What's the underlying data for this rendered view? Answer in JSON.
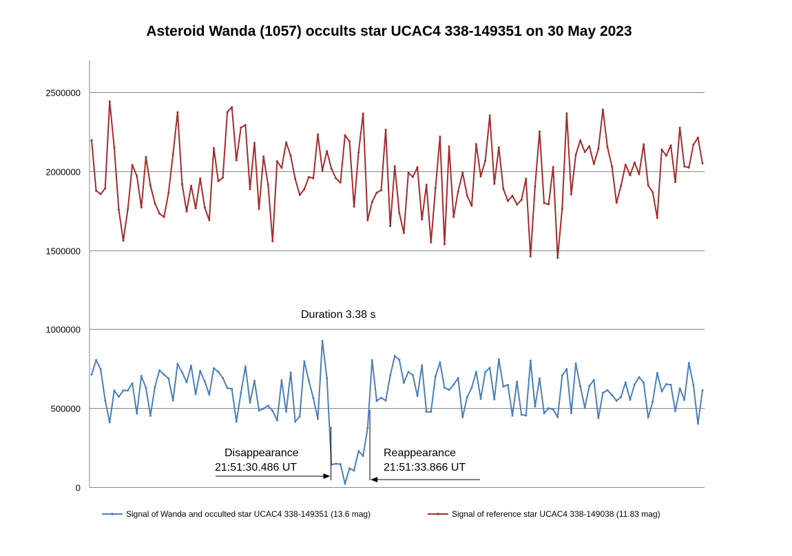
{
  "chart_data": {
    "type": "line",
    "title": "Asteroid Wanda (1057) occults star UCAC4 338-149351 on 30 May 2023",
    "xlabel": "",
    "ylabel": "",
    "ylim": [
      0,
      2700000
    ],
    "yticks": [
      0,
      500000,
      1000000,
      1500000,
      2000000,
      2500000
    ],
    "ytick_labels": [
      "0",
      "500000",
      "1000000",
      "1500000",
      "2000000",
      "2500000"
    ],
    "grid": "horizontal",
    "legend_position": "bottom",
    "series": [
      {
        "name": "Signal of Wanda and occulted star UCAC4 338-149351 (13.6 mag)",
        "color": "#4a7ebb",
        "values": [
          713000,
          805000,
          747000,
          549000,
          410000,
          612000,
          572000,
          612000,
          612000,
          658000,
          466000,
          704000,
          630000,
          452000,
          636000,
          739000,
          713000,
          688000,
          549000,
          780000,
          728000,
          664000,
          769000,
          589000,
          736000,
          670000,
          586000,
          753000,
          730000,
          691000,
          627000,
          622000,
          414000,
          597000,
          764000,
          535000,
          674000,
          485000,
          497000,
          516000,
          483000,
          423000,
          676000,
          478000,
          725000,
          414000,
          448000,
          797000,
          674000,
          564000,
          433000,
          926000,
          690000,
          143000,
          148000,
          146000,
          22000,
          119000,
          105000,
          229000,
          198000,
          375000,
          804000,
          546000,
          566000,
          548000,
          707000,
          830000,
          807000,
          661000,
          730000,
          709000,
          577000,
          771000,
          477000,
          477000,
          702000,
          790000,
          629000,
          616000,
          649000,
          691000,
          443000,
          569000,
          630000,
          730000,
          559000,
          728000,
          755000,
          556000,
          809000,
          636000,
          648000,
          453000,
          667000,
          459000,
          454000,
          801000,
          510000,
          688000,
          468000,
          499000,
          493000,
          443000,
          707000,
          747000,
          468000,
          783000,
          639000,
          502000,
          641000,
          678000,
          437000,
          597000,
          614000,
          583000,
          547000,
          571000,
          663000,
          553000,
          651000,
          696000,
          662000,
          441000,
          541000,
          723000,
          606000,
          652000,
          648000,
          482000,
          626000,
          552000,
          786000,
          647000,
          402000,
          614000
        ]
      },
      {
        "name": "Signal of reference star UCAC4 338-149038 (11.83 mag)",
        "color": "#a52a2a",
        "values": [
          2196000,
          1876000,
          1855000,
          1891000,
          2441000,
          2151000,
          1757000,
          1560000,
          1757000,
          2039000,
          1970000,
          1770000,
          2089000,
          1909000,
          1796000,
          1732000,
          1710000,
          1862000,
          2108000,
          2373000,
          1918000,
          1745000,
          1908000,
          1765000,
          1954000,
          1770000,
          1690000,
          2147000,
          1937000,
          1959000,
          2374000,
          2405000,
          2069000,
          2276000,
          2292000,
          1887000,
          2179000,
          1761000,
          2093000,
          1915000,
          1557000,
          2063000,
          2021000,
          2182000,
          2097000,
          1951000,
          1849000,
          1886000,
          1963000,
          1955000,
          2232000,
          2004000,
          2127000,
          2016000,
          1954000,
          1928000,
          2227000,
          2188000,
          1775000,
          2118000,
          2365000,
          1689000,
          1806000,
          1864000,
          1879000,
          2262000,
          1652000,
          2031000,
          1736000,
          1609000,
          1989000,
          1964000,
          2025000,
          1694000,
          1914000,
          1549000,
          1893000,
          2218000,
          1537000,
          2156000,
          1710000,
          1871000,
          1991000,
          1844000,
          1781000,
          2171000,
          1967000,
          2066000,
          2352000,
          1920000,
          2150000,
          1887000,
          1811000,
          1844000,
          1789000,
          1818000,
          1952000,
          1461000,
          1902000,
          2251000,
          1798000,
          1790000,
          2026000,
          1452000,
          1765000,
          2366000,
          1853000,
          2103000,
          2195000,
          2121000,
          2158000,
          2045000,
          2142000,
          2389000,
          2153000,
          2029000,
          1800000,
          1908000,
          2041000,
          1974000,
          2055000,
          1981000,
          2170000,
          1910000,
          1867000,
          1705000,
          2137000,
          2098000,
          2163000,
          1931000,
          2275000,
          2030000,
          2023000,
          2168000,
          2212000,
          2049000
        ]
      }
    ],
    "annotations": {
      "duration": "Duration 3.38 s",
      "disappearance_label": "Disappearance",
      "disappearance_time": "21:51:30.486 UT",
      "reappearance_label": "Reappearance",
      "reappearance_time": "21:51:33.866 UT",
      "disappearance_index": 52.9,
      "reappearance_index": 61.5
    }
  }
}
